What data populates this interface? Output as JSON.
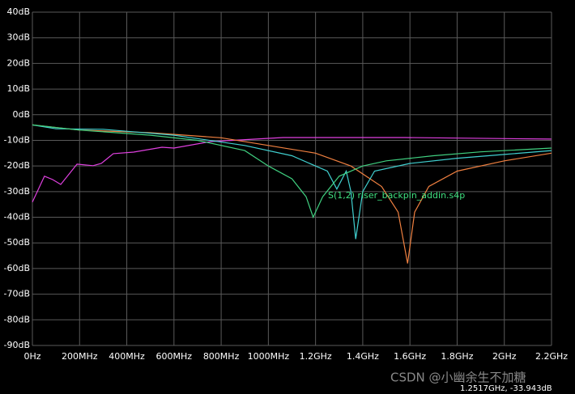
{
  "chart_data": {
    "type": "line",
    "annotation": "S(1,2) riser_backpln_addin.s4p",
    "readout": "1.2517GHz, -33.943dB",
    "watermark": "CSDN @小幽余生不加糖",
    "background": "#000000",
    "grid": true,
    "grid_color": "#5a5a5a",
    "annotation_color": "#40e080",
    "xlim": [
      0,
      2200
    ],
    "xticks": [
      {
        "value": 0,
        "label": "0Hz"
      },
      {
        "value": 200,
        "label": "200MHz"
      },
      {
        "value": 400,
        "label": "400MHz"
      },
      {
        "value": 600,
        "label": "600MHz"
      },
      {
        "value": 800,
        "label": "800MHz"
      },
      {
        "value": 1000,
        "label": "1000MHz"
      },
      {
        "value": 1200,
        "label": "1.2GHz"
      },
      {
        "value": 1400,
        "label": "1.4GHz"
      },
      {
        "value": 1600,
        "label": "1.6GHz"
      },
      {
        "value": 1800,
        "label": "1.8GHz"
      },
      {
        "value": 2000,
        "label": "2GHz"
      },
      {
        "value": 2200,
        "label": "2.2GHz"
      }
    ],
    "ylim": [
      -90,
      40
    ],
    "yticks": [
      {
        "value": 40,
        "label": "40dB"
      },
      {
        "value": 30,
        "label": "30dB"
      },
      {
        "value": 20,
        "label": "20dB"
      },
      {
        "value": 10,
        "label": "10dB"
      },
      {
        "value": 0,
        "label": "0dB"
      },
      {
        "value": -10,
        "label": "-10dB"
      },
      {
        "value": -20,
        "label": "-20dB"
      },
      {
        "value": -30,
        "label": "-30dB"
      },
      {
        "value": -40,
        "label": "-40dB"
      },
      {
        "value": -50,
        "label": "-50dB"
      },
      {
        "value": -60,
        "label": "-60dB"
      },
      {
        "value": -70,
        "label": "-70dB"
      },
      {
        "value": -80,
        "label": "-80dB"
      },
      {
        "value": -90,
        "label": "-90dB"
      }
    ],
    "series": [
      {
        "color": "#e040e0",
        "x": [
          0,
          51,
          86,
          120,
          189,
          257,
          292,
          343,
          429,
          549,
          600,
          755,
          1063,
          1578,
          2199
        ],
        "values": [
          -34.1,
          -24.0,
          -25.3,
          -27.2,
          -19.3,
          -19.9,
          -19.0,
          -15.2,
          -14.6,
          -12.7,
          -13.0,
          -10.5,
          -8.9,
          -8.9,
          -9.5
        ]
      },
      {
        "color": "#f08040",
        "x": [
          0,
          200,
          500,
          800,
          1000,
          1200,
          1350,
          1480,
          1550,
          1590,
          1620,
          1680,
          1800,
          2000,
          2200
        ],
        "values": [
          -4,
          -6,
          -7,
          -9,
          -12,
          -15,
          -20,
          -28,
          -38,
          -58,
          -38,
          -28,
          -22,
          -18,
          -15
        ]
      },
      {
        "color": "#40d0d0",
        "x": [
          0,
          100,
          300,
          600,
          900,
          1100,
          1250,
          1290,
          1330,
          1350,
          1370,
          1400,
          1450,
          1600,
          1800,
          2000,
          2200
        ],
        "values": [
          -4,
          -5.5,
          -5.7,
          -8,
          -12,
          -16,
          -22,
          -29,
          -22,
          -30,
          -48.5,
          -30,
          -22,
          -19,
          -17,
          -15.5,
          -14
        ]
      },
      {
        "color": "#40d080",
        "x": [
          0,
          200,
          500,
          700,
          900,
          1000,
          1100,
          1160,
          1190,
          1230,
          1300,
          1400,
          1500,
          1700,
          1900,
          2200
        ],
        "values": [
          -4,
          -6,
          -8,
          -10,
          -14,
          -20,
          -25,
          -32,
          -40,
          -32,
          -24,
          -20,
          -18,
          -16,
          -14.5,
          -13
        ]
      }
    ]
  }
}
